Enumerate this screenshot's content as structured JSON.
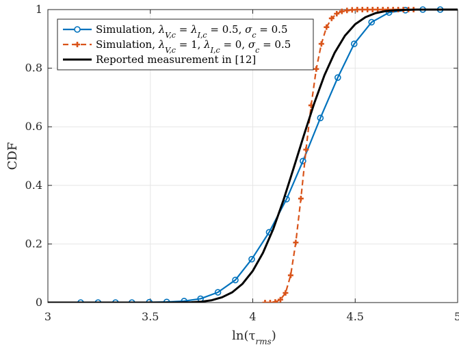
{
  "chart_data": {
    "type": "line",
    "xlabel": "ln(τ_rms)",
    "ylabel": "CDF",
    "xlim": [
      3,
      5
    ],
    "ylim": [
      0,
      1
    ],
    "xticks": [
      3,
      3.5,
      4,
      4.5,
      5
    ],
    "xtick_labels": [
      "3",
      "3.5",
      "4",
      "4.5",
      "5"
    ],
    "yticks": [
      0,
      0.2,
      0.4,
      0.6,
      0.8,
      1
    ],
    "ytick_labels": [
      "0",
      "0.2",
      "0.4",
      "0.6",
      "0.8",
      "1"
    ],
    "grid": true,
    "legend_position": "top-left",
    "series": [
      {
        "name": "Simulation, λ_{V,c} = λ_{I,c} = 0.5, σ_c = 0.5",
        "color": "#0072BD",
        "style": "solid",
        "marker": "circle",
        "x": [
          3.16,
          3.245,
          3.33,
          3.41,
          3.495,
          3.58,
          3.665,
          3.745,
          3.83,
          3.915,
          3.995,
          4.08,
          4.165,
          4.245,
          4.33,
          4.415,
          4.495,
          4.58,
          4.665,
          4.745,
          4.83,
          4.915
        ],
        "y": [
          0.0,
          0.0,
          0.0,
          0.0,
          0.001,
          0.002,
          0.005,
          0.013,
          0.035,
          0.077,
          0.148,
          0.24,
          0.353,
          0.483,
          0.63,
          0.768,
          0.883,
          0.957,
          0.99,
          0.998,
          1.0,
          1.0
        ]
      },
      {
        "name": "Simulation, λ_{V,c} = 1, λ_{I,c} = 0, σ_c = 0.5",
        "color": "#D95319",
        "style": "dashed",
        "marker": "plus",
        "x": [
          4.06,
          4.085,
          4.11,
          4.135,
          4.16,
          4.185,
          4.21,
          4.235,
          4.26,
          4.285,
          4.31,
          4.335,
          4.36,
          4.385,
          4.41,
          4.435,
          4.46,
          4.485,
          4.51,
          4.535,
          4.56,
          4.585,
          4.61,
          4.635,
          4.66,
          4.685,
          4.71,
          4.735,
          4.76,
          4.785
        ],
        "y": [
          0.0,
          0.0,
          0.002,
          0.01,
          0.033,
          0.093,
          0.205,
          0.355,
          0.522,
          0.673,
          0.797,
          0.883,
          0.94,
          0.97,
          0.986,
          0.994,
          0.997,
          0.999,
          1.0,
          1.0,
          1.0,
          1.0,
          1.0,
          1.0,
          1.0,
          1.0,
          1.0,
          1.0,
          1.0,
          1.0
        ]
      },
      {
        "name": "Reported measurement in [12]",
        "color": "#000000",
        "style": "solid",
        "marker": "none",
        "x": [
          3.0,
          3.4,
          3.6,
          3.7,
          3.75,
          3.8,
          3.85,
          3.9,
          3.95,
          4.0,
          4.05,
          4.1,
          4.15,
          4.2,
          4.25,
          4.3,
          4.35,
          4.4,
          4.45,
          4.5,
          4.55,
          4.6,
          4.65,
          4.7,
          4.75,
          4.8,
          4.9,
          5.0
        ],
        "y": [
          0.0,
          0.0,
          0.0,
          0.001,
          0.003,
          0.008,
          0.018,
          0.035,
          0.064,
          0.108,
          0.17,
          0.251,
          0.35,
          0.46,
          0.572,
          0.68,
          0.776,
          0.853,
          0.911,
          0.95,
          0.974,
          0.988,
          0.995,
          0.998,
          0.999,
          1.0,
          1.0,
          1.0
        ]
      }
    ]
  },
  "legend": {
    "entries": [
      {
        "prefix": "Simulation, ",
        "math": [
          [
            "λ",
            "V,c"
          ],
          " = ",
          [
            "λ",
            "I,c"
          ],
          " = 0.5, ",
          [
            "σ",
            "c"
          ],
          " = 0.5"
        ]
      },
      {
        "prefix": "Simulation, ",
        "math": [
          [
            "λ",
            "V,c"
          ],
          " = 1, ",
          [
            "λ",
            "I,c"
          ],
          " = 0, ",
          [
            "σ",
            "c"
          ],
          " = 0.5"
        ]
      },
      {
        "prefix": "Reported measurement in [12]",
        "math": []
      }
    ]
  }
}
